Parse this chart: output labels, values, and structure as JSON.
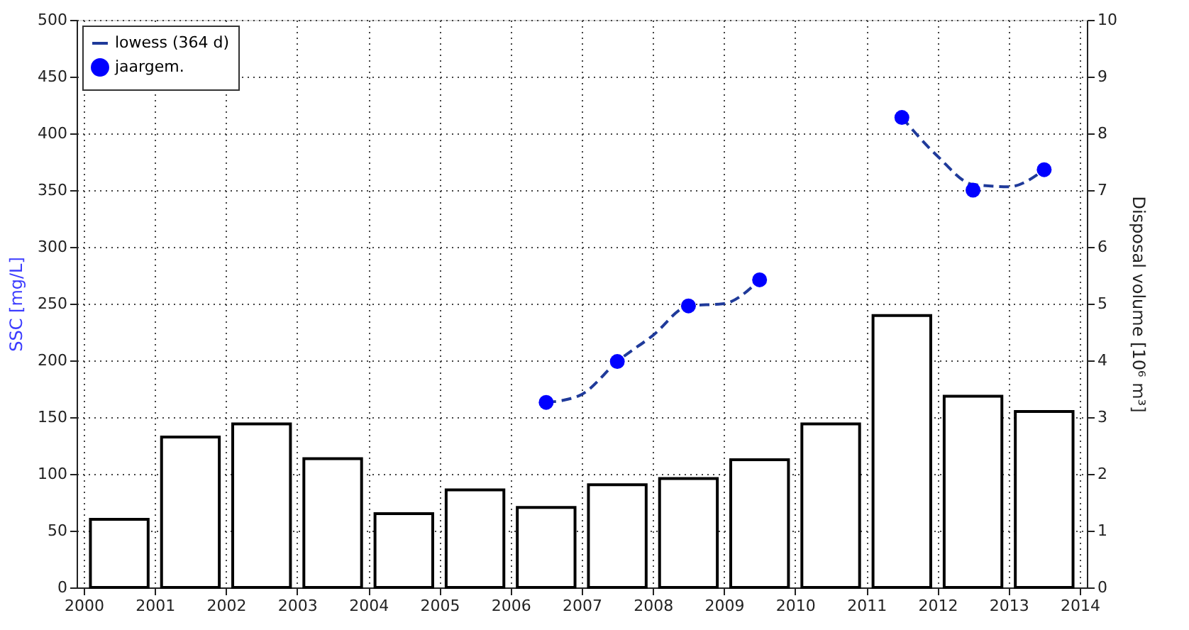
{
  "chart_data": {
    "type": "bar",
    "xlim": [
      2000,
      2014
    ],
    "xticks": [
      2000,
      2001,
      2002,
      2003,
      2004,
      2005,
      2006,
      2007,
      2008,
      2009,
      2010,
      2011,
      2012,
      2013,
      2014
    ],
    "ylim": [
      0,
      500
    ],
    "yticks": [
      0,
      50,
      100,
      150,
      200,
      250,
      300,
      350,
      400,
      450,
      500
    ],
    "y2lim": [
      0,
      10
    ],
    "y2ticks": [
      0,
      1,
      2,
      3,
      4,
      5,
      6,
      7,
      8,
      9,
      10
    ],
    "ylabel": "SSC [mg/L]",
    "y2label": "Disposal volume [10⁶ m³]",
    "grid": true,
    "legend": "top left",
    "series": [
      {
        "name": "lowess (364 d)",
        "type": "line",
        "line_style": "dashed",
        "marker": "none",
        "color": "#1f3a9a",
        "x": [
          2006.5,
          2006.75,
          2007.0,
          2007.5,
          2008.0,
          2008.5,
          2009.0,
          2009.5,
          2010.5,
          2011.5,
          2012.0,
          2012.5,
          2013.0,
          2013.5
        ],
        "values": [
          163,
          165,
          170,
          199,
          222,
          248,
          250,
          271,
          null,
          414,
          380,
          355,
          353,
          368
        ]
      },
      {
        "name": "jaargem.",
        "type": "scatter",
        "marker": "circle",
        "color": "#0000ff",
        "x": [
          2006.5,
          2007.5,
          2008.5,
          2009.5,
          2011.5,
          2012.5,
          2013.5
        ],
        "values": [
          163,
          199,
          248,
          271,
          414,
          350,
          368
        ]
      },
      {
        "axis": "y2",
        "color": "#000000",
        "x": [
          2000.5,
          2001.5,
          2002.5,
          2003.5,
          2004.5,
          2005.5,
          2006.5,
          2007.5,
          2008.5,
          2009.5,
          2010.5,
          2011.5,
          2012.5,
          2013.5
        ],
        "values": [
          1.2,
          2.65,
          2.88,
          2.27,
          1.3,
          1.72,
          1.41,
          1.81,
          1.92,
          2.25,
          2.88,
          4.79,
          3.37,
          3.1
        ]
      }
    ]
  }
}
